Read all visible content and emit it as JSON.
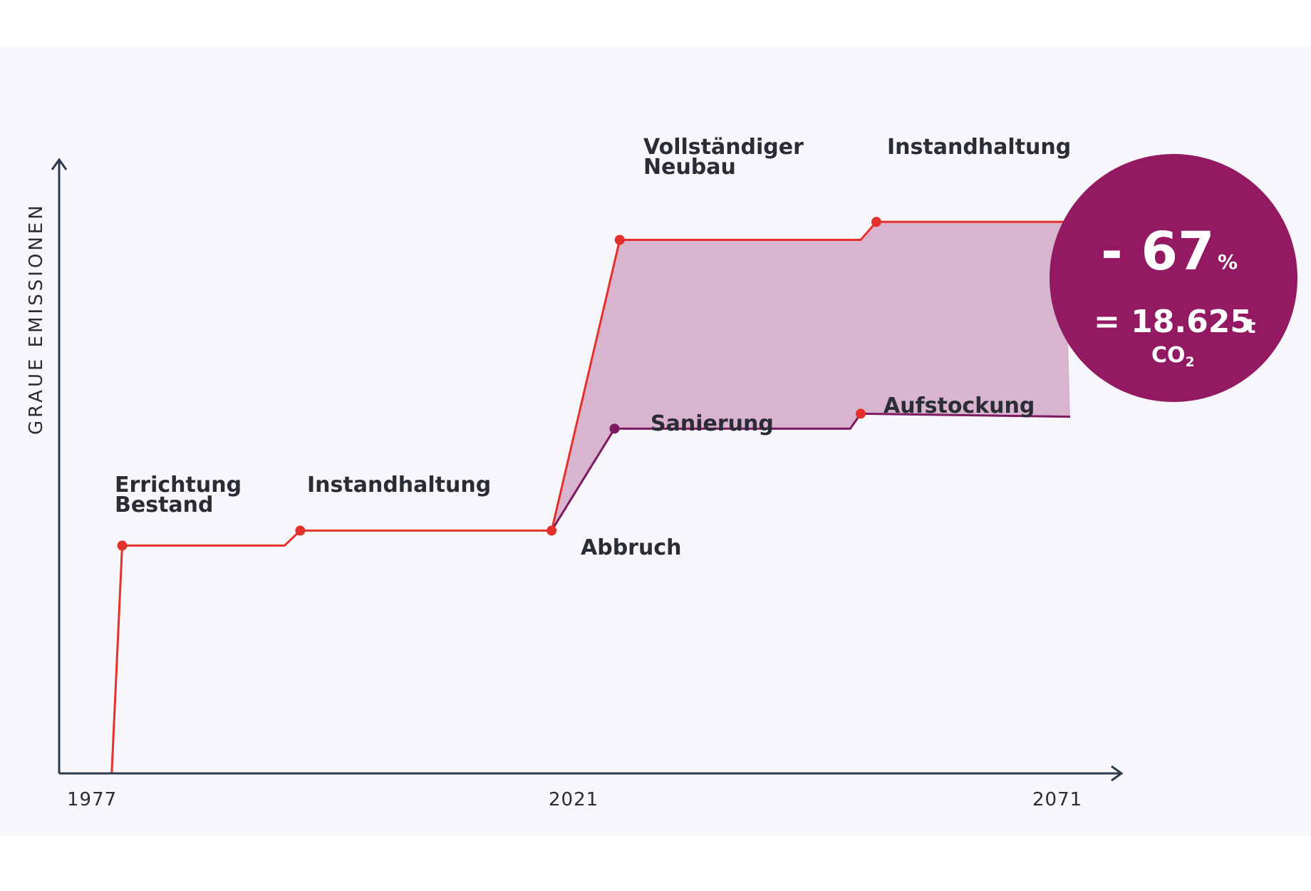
{
  "chart_data": {
    "type": "line",
    "ylabel": "GRAUE EMISSIONEN",
    "x_ticks": [
      "1977",
      "2021",
      "2071"
    ],
    "xlim": [
      1977,
      2071
    ],
    "series": [
      {
        "points": [
          [
            1979.5,
            0
          ],
          [
            1980.5,
            38
          ],
          [
            1996,
            38
          ],
          [
            1997.5,
            40.5
          ],
          [
            2021.5,
            40.5
          ],
          [
            2028,
            89
          ],
          [
            2051,
            89
          ],
          [
            2052.5,
            92
          ],
          [
            2070.5,
            92
          ]
        ]
      },
      {
        "points": [
          [
            2021.5,
            40.5
          ],
          [
            2027.5,
            57.5
          ],
          [
            2050,
            57.5
          ],
          [
            2051,
            60
          ],
          [
            2071,
            59.5
          ]
        ]
      }
    ],
    "annotations": {
      "errichtung": [
        "Errichtung",
        "Bestand"
      ],
      "instandhaltung_1": "Instandhaltung",
      "abbruch": "Abbruch",
      "neubau": [
        "Vollständiger",
        "Neubau"
      ],
      "instandhaltung_2": "Instandhaltung",
      "sanierung": "Sanierung",
      "aufstockung": "Aufstockung"
    },
    "badge": {
      "reduction": "- 67",
      "reduction_unit": "%",
      "amount": "= 18.625",
      "amount_unit": "t",
      "co2_main": "CO",
      "co2_sub": "2"
    },
    "colors": {
      "red_line": "#e5312b",
      "purple_line": "#7e1a62",
      "fill": "#d8b4ce",
      "badge": "#931963",
      "axis": "#2e3a4e"
    }
  }
}
